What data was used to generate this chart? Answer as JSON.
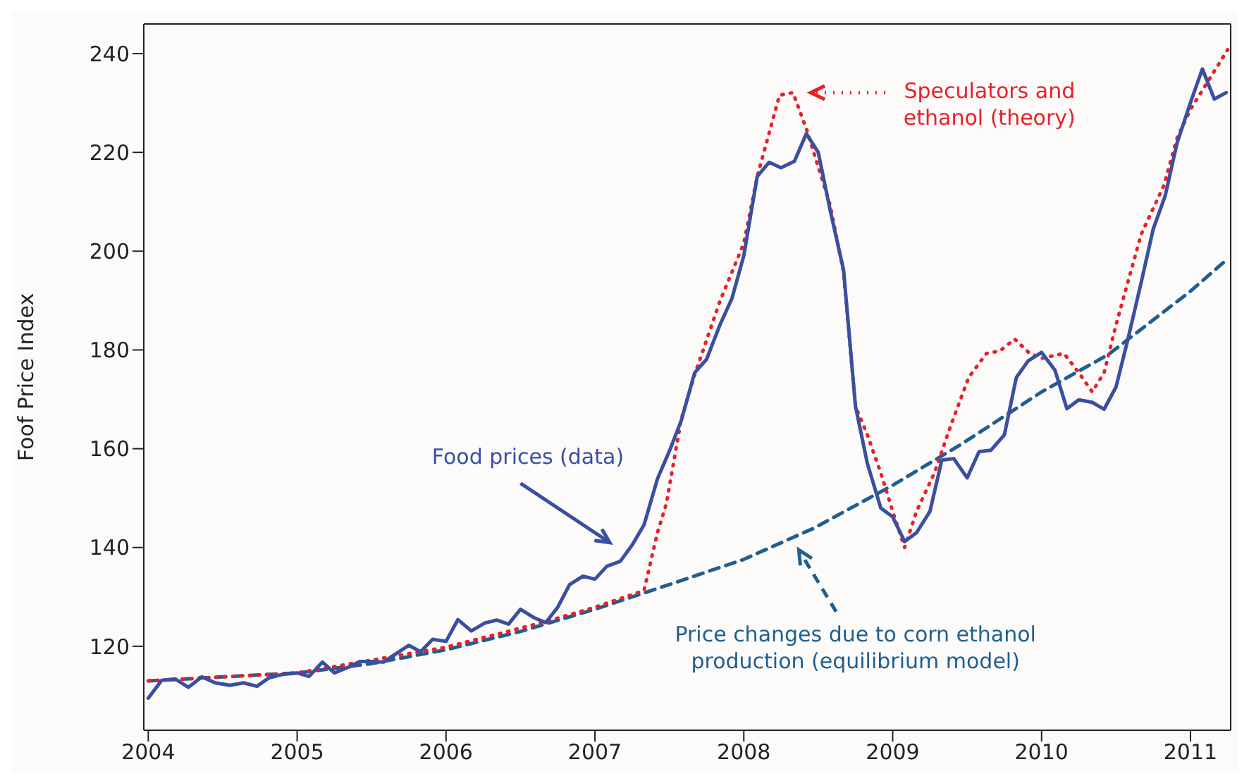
{
  "chart_data": {
    "type": "line",
    "ylabel": "Foof Price Index",
    "xlim": [
      2003.97,
      2011.27
    ],
    "xticks": [
      2004,
      2005,
      2006,
      2007,
      2008,
      2009,
      2010,
      2011
    ],
    "ylim": [
      103,
      246
    ],
    "yticks": [
      120,
      140,
      160,
      180,
      200,
      220,
      240
    ],
    "marker": "none",
    "series": [
      {
        "name": "Food prices (data)",
        "color": "#3a4fa0",
        "line_style": "solid",
        "x": [
          2004.0,
          2004.09,
          2004.18,
          2004.27,
          2004.36,
          2004.45,
          2004.55,
          2004.64,
          2004.73,
          2004.81,
          2004.9,
          2005.0,
          2005.08,
          2005.17,
          2005.25,
          2005.34,
          2005.42,
          2005.5,
          2005.58,
          2005.67,
          2005.75,
          2005.83,
          2005.91,
          2006.0,
          2006.08,
          2006.17,
          2006.26,
          2006.34,
          2006.42,
          2006.5,
          2006.59,
          2006.67,
          2006.75,
          2006.83,
          2006.92,
          2007.0,
          2007.08,
          2007.17,
          2007.25,
          2007.33,
          2007.42,
          2007.5,
          2007.58,
          2007.67,
          2007.75,
          2007.84,
          2007.92,
          2008.0,
          2008.09,
          2008.17,
          2008.25,
          2008.34,
          2008.42,
          2008.5,
          2008.58,
          2008.67,
          2008.75,
          2008.83,
          2008.92,
          2009.0,
          2009.08,
          2009.16,
          2009.25,
          2009.33,
          2009.41,
          2009.5,
          2009.58,
          2009.66,
          2009.75,
          2009.83,
          2009.91,
          2010.0,
          2010.09,
          2010.17,
          2010.25,
          2010.34,
          2010.42,
          2010.5,
          2010.58,
          2010.67,
          2010.75,
          2010.83,
          2010.91,
          2011.0,
          2011.08,
          2011.16,
          2011.24
        ],
        "values": [
          109.5,
          113.1,
          113.4,
          111.7,
          113.8,
          112.6,
          112.1,
          112.6,
          111.9,
          113.6,
          114.3,
          114.6,
          113.9,
          116.8,
          114.6,
          115.7,
          116.9,
          116.9,
          116.8,
          118.6,
          120.2,
          118.9,
          121.4,
          121.0,
          125.4,
          123.1,
          124.7,
          125.3,
          124.5,
          127.5,
          125.8,
          124.8,
          127.9,
          132.5,
          134.2,
          133.6,
          136.2,
          137.2,
          140.5,
          144.6,
          153.9,
          159.5,
          165.7,
          175.4,
          178.1,
          185.1,
          190.4,
          199.1,
          215.1,
          218.0,
          216.9,
          218.2,
          223.8,
          220.0,
          208.3,
          196.2,
          168.6,
          157.0,
          148.0,
          146.2,
          141.2,
          143.0,
          147.3,
          157.7,
          158.0,
          154.1,
          159.4,
          159.7,
          162.8,
          174.4,
          177.8,
          179.5,
          175.9,
          168.1,
          169.9,
          169.4,
          168.0,
          172.5,
          182.2,
          193.8,
          204.5,
          211.2,
          221.9,
          230.1,
          236.9,
          230.8,
          232.1
        ]
      },
      {
        "name": "Speculators and ethanol (theory)",
        "color": "#e8202a",
        "line_style": "dotted",
        "x": [
          2004.0,
          2005.0,
          2006.0,
          2006.67,
          2007.0,
          2007.33,
          2007.42,
          2007.48,
          2007.58,
          2007.67,
          2007.84,
          2008.0,
          2008.09,
          2008.24,
          2008.33,
          2008.42,
          2008.58,
          2008.67,
          2008.75,
          2008.83,
          2008.92,
          2009.0,
          2009.08,
          2009.16,
          2009.28,
          2009.39,
          2009.51,
          2009.63,
          2009.72,
          2009.82,
          2009.92,
          2010.0,
          2010.15,
          2010.25,
          2010.34,
          2010.42,
          2010.5,
          2010.58,
          2010.67,
          2010.82,
          2010.91,
          2011.0,
          2011.12,
          2011.25
        ],
        "values": [
          113.0,
          114.6,
          119.8,
          125.0,
          127.9,
          131.3,
          143.0,
          148.9,
          166.0,
          175.0,
          189.9,
          201.6,
          215.1,
          231.6,
          232.1,
          224.8,
          209.3,
          195.7,
          168.6,
          162.8,
          155.1,
          147.3,
          140.0,
          147.3,
          155.1,
          164.7,
          174.4,
          179.3,
          179.8,
          182.2,
          179.3,
          178.3,
          179.3,
          175.4,
          171.5,
          175.4,
          185.1,
          193.8,
          203.5,
          213.2,
          222.9,
          228.7,
          234.5,
          240.8
        ]
      },
      {
        "name": "Price changes due to corn ethanol production (equilibrium model)",
        "color": "#1f5f8f",
        "line_style": "dashed",
        "x": [
          2004.0,
          2005.0,
          2005.5,
          2006.0,
          2006.5,
          2007.0,
          2007.48,
          2008.0,
          2008.47,
          2009.0,
          2009.46,
          2010.0,
          2010.45,
          2011.0,
          2011.24
        ],
        "values": [
          113.0,
          114.6,
          116.5,
          119.3,
          123.0,
          127.5,
          132.3,
          137.6,
          143.9,
          152.6,
          160.9,
          171.5,
          179.1,
          191.9,
          198.2
        ]
      }
    ]
  }
}
